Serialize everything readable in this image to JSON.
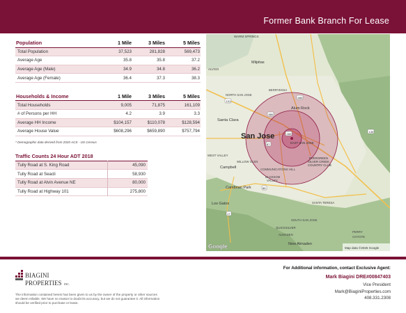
{
  "header": {
    "title": "Former Bank Branch For Lease"
  },
  "population": {
    "columns": [
      "Population",
      "1 Mile",
      "3 Miles",
      "5 Miles"
    ],
    "rows": [
      [
        "Total Population",
        "37,523",
        "281,828",
        "569,473"
      ],
      [
        "Average Age",
        "35.8",
        "35.8",
        "37.2"
      ],
      [
        "Average Age (Male)",
        "34.9",
        "34.8",
        "36.2"
      ],
      [
        "Average Age (Female)",
        "36.4",
        "37.3",
        "38.3"
      ]
    ]
  },
  "households": {
    "columns": [
      "Households & Income",
      "1 Mile",
      "3 Miles",
      "5 Miles"
    ],
    "rows": [
      [
        "Total Households",
        "9,005",
        "71,875",
        "161,109"
      ],
      [
        "# of Persons per HH",
        "4.2",
        "3.9",
        "3.3"
      ],
      [
        "Average HH Income",
        "$104,157",
        "$110,078",
        "$128,594"
      ],
      [
        "Average House Value",
        "$608,296",
        "$659,890",
        "$757,794"
      ]
    ],
    "note": "* Demographic data derived from 2020 ACS - US Census"
  },
  "traffic": {
    "title": "Traffic Counts 24 Hour ADT 2018",
    "rows": [
      [
        "Tully Road at S. King Road",
        "45,090"
      ],
      [
        "Tully Road at Seacli",
        "58,930"
      ],
      [
        "Tully Road at Alvin Avenue NE",
        "80,000"
      ],
      [
        "Tully Road at Highway 101",
        "275,800"
      ]
    ]
  },
  "map": {
    "labels": {
      "warm_springs": "WARM SPRINGS",
      "milpitas": "Milpitas",
      "alviso": "ALVISO",
      "north_san_jose": "NORTH SAN JOSE",
      "berryessa": "BERRYESSA",
      "santa_clara": "Santa Clara",
      "alum_rock": "Alum Rock",
      "san_jose": "San Jose",
      "east_san_jose": "EAST SAN JOSE",
      "west_valley": "WEST VALLEY",
      "willow_glen": "WILLOW GLEN",
      "evergreen": "EVERGREEN",
      "silver_creek": "SILVER CREEK",
      "country_club": "COUNTRY CLUB",
      "campbell": "Campbell",
      "communications_hill": "COMMUNICATIONS HILL",
      "blossom": "BLOSSOM",
      "valley": "VALLEY",
      "cambrian_park": "Cambrian Park",
      "los_gatos": "Los Gatos",
      "santa_teresa": "SANTA TERESA",
      "south_san_jose": "SOUTH SAN JOSE",
      "quicksilver": "QUICKSILVER",
      "almaden": "ALMADEN",
      "new_almaden": "New Almaden",
      "perry": "PERRY",
      "coyote": "COYOTE",
      "google": "Google",
      "attribution": "Map data ©2025 Google",
      "hwy_101": "101",
      "hwy_680": "680",
      "hwy_880": "880",
      "hwy_280": "280",
      "hwy_85": "85",
      "hwy_87": "87",
      "hwy_17": "17",
      "hwy_130": "130"
    },
    "colors": {
      "ring": "#b0285a",
      "ring_stroke": "#8e1a47"
    }
  },
  "footer": {
    "logo_text_1": "BIAGINI",
    "logo_text_2": "PROPERTIES",
    "logo_text_3": "INC.",
    "disclaimer": "The information contained herein has been given to us by the owner of the property or other sources we deem reliable. We have no reason to doubt its accuracy, but we do not guarantee it. All information should be verified prior to purchase or lease.",
    "contact_intro": "For Additional information, contact Exclusive Agent:",
    "agent_name": "Mark Biagini DRE#00847403",
    "agent_title": "Vice President",
    "agent_email": "Mark@BiaginiProperties.com",
    "agent_phone": "408.331.2308"
  },
  "brand_color": "#7a1136"
}
